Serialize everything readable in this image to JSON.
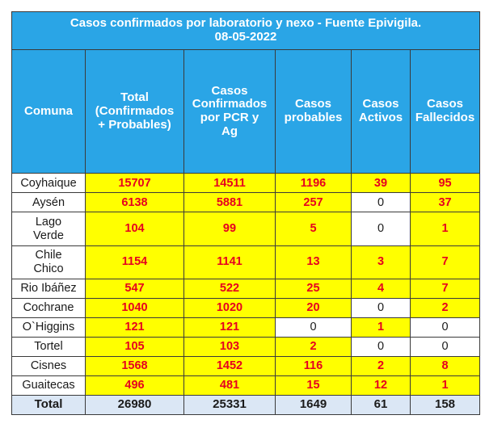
{
  "title_line1": "Casos confirmados por laboratorio y nexo - Fuente Epivigila.",
  "title_line2": "08-05-2022",
  "headers": [
    [
      "Comuna"
    ],
    [
      "Total",
      "(Confirmados",
      "+ Probables)"
    ],
    [
      "Casos",
      "Confirmados",
      "por PCR y",
      "Ag"
    ],
    [
      "Casos",
      "probables"
    ],
    [
      "Casos",
      "Activos"
    ],
    [
      "Casos",
      "Fallecidos"
    ]
  ],
  "rows": [
    {
      "name": [
        "Coyhaique"
      ],
      "total": "15707",
      "pcr": "14511",
      "probables": "1196",
      "activos": "39",
      "fallecidos": "95"
    },
    {
      "name": [
        "Aysén"
      ],
      "total": "6138",
      "pcr": "5881",
      "probables": "257",
      "activos": "0",
      "fallecidos": "37"
    },
    {
      "name": [
        "Lago",
        "Verde"
      ],
      "total": "104",
      "pcr": "99",
      "probables": "5",
      "activos": "0",
      "fallecidos": "1"
    },
    {
      "name": [
        "Chile",
        "Chico"
      ],
      "total": "1154",
      "pcr": "1141",
      "probables": "13",
      "activos": "3",
      "fallecidos": "7"
    },
    {
      "name": [
        "Rio Ibáñez"
      ],
      "total": "547",
      "pcr": "522",
      "probables": "25",
      "activos": "4",
      "fallecidos": "7"
    },
    {
      "name": [
        "Cochrane"
      ],
      "total": "1040",
      "pcr": "1020",
      "probables": "20",
      "activos": "0",
      "fallecidos": "2"
    },
    {
      "name": [
        "O`Higgins"
      ],
      "total": "121",
      "pcr": "121",
      "probables": "0",
      "activos": "1",
      "fallecidos": "0"
    },
    {
      "name": [
        "Tortel"
      ],
      "total": "105",
      "pcr": "103",
      "probables": "2",
      "activos": "0",
      "fallecidos": "0"
    },
    {
      "name": [
        "Cisnes"
      ],
      "total": "1568",
      "pcr": "1452",
      "probables": "116",
      "activos": "2",
      "fallecidos": "8"
    },
    {
      "name": [
        "Guaitecas"
      ],
      "total": "496",
      "pcr": "481",
      "probables": "15",
      "activos": "12",
      "fallecidos": "1"
    }
  ],
  "total_row": {
    "name": "Total",
    "total": "26980",
    "pcr": "25331",
    "probables": "1649",
    "activos": "61",
    "fallecidos": "158"
  }
}
